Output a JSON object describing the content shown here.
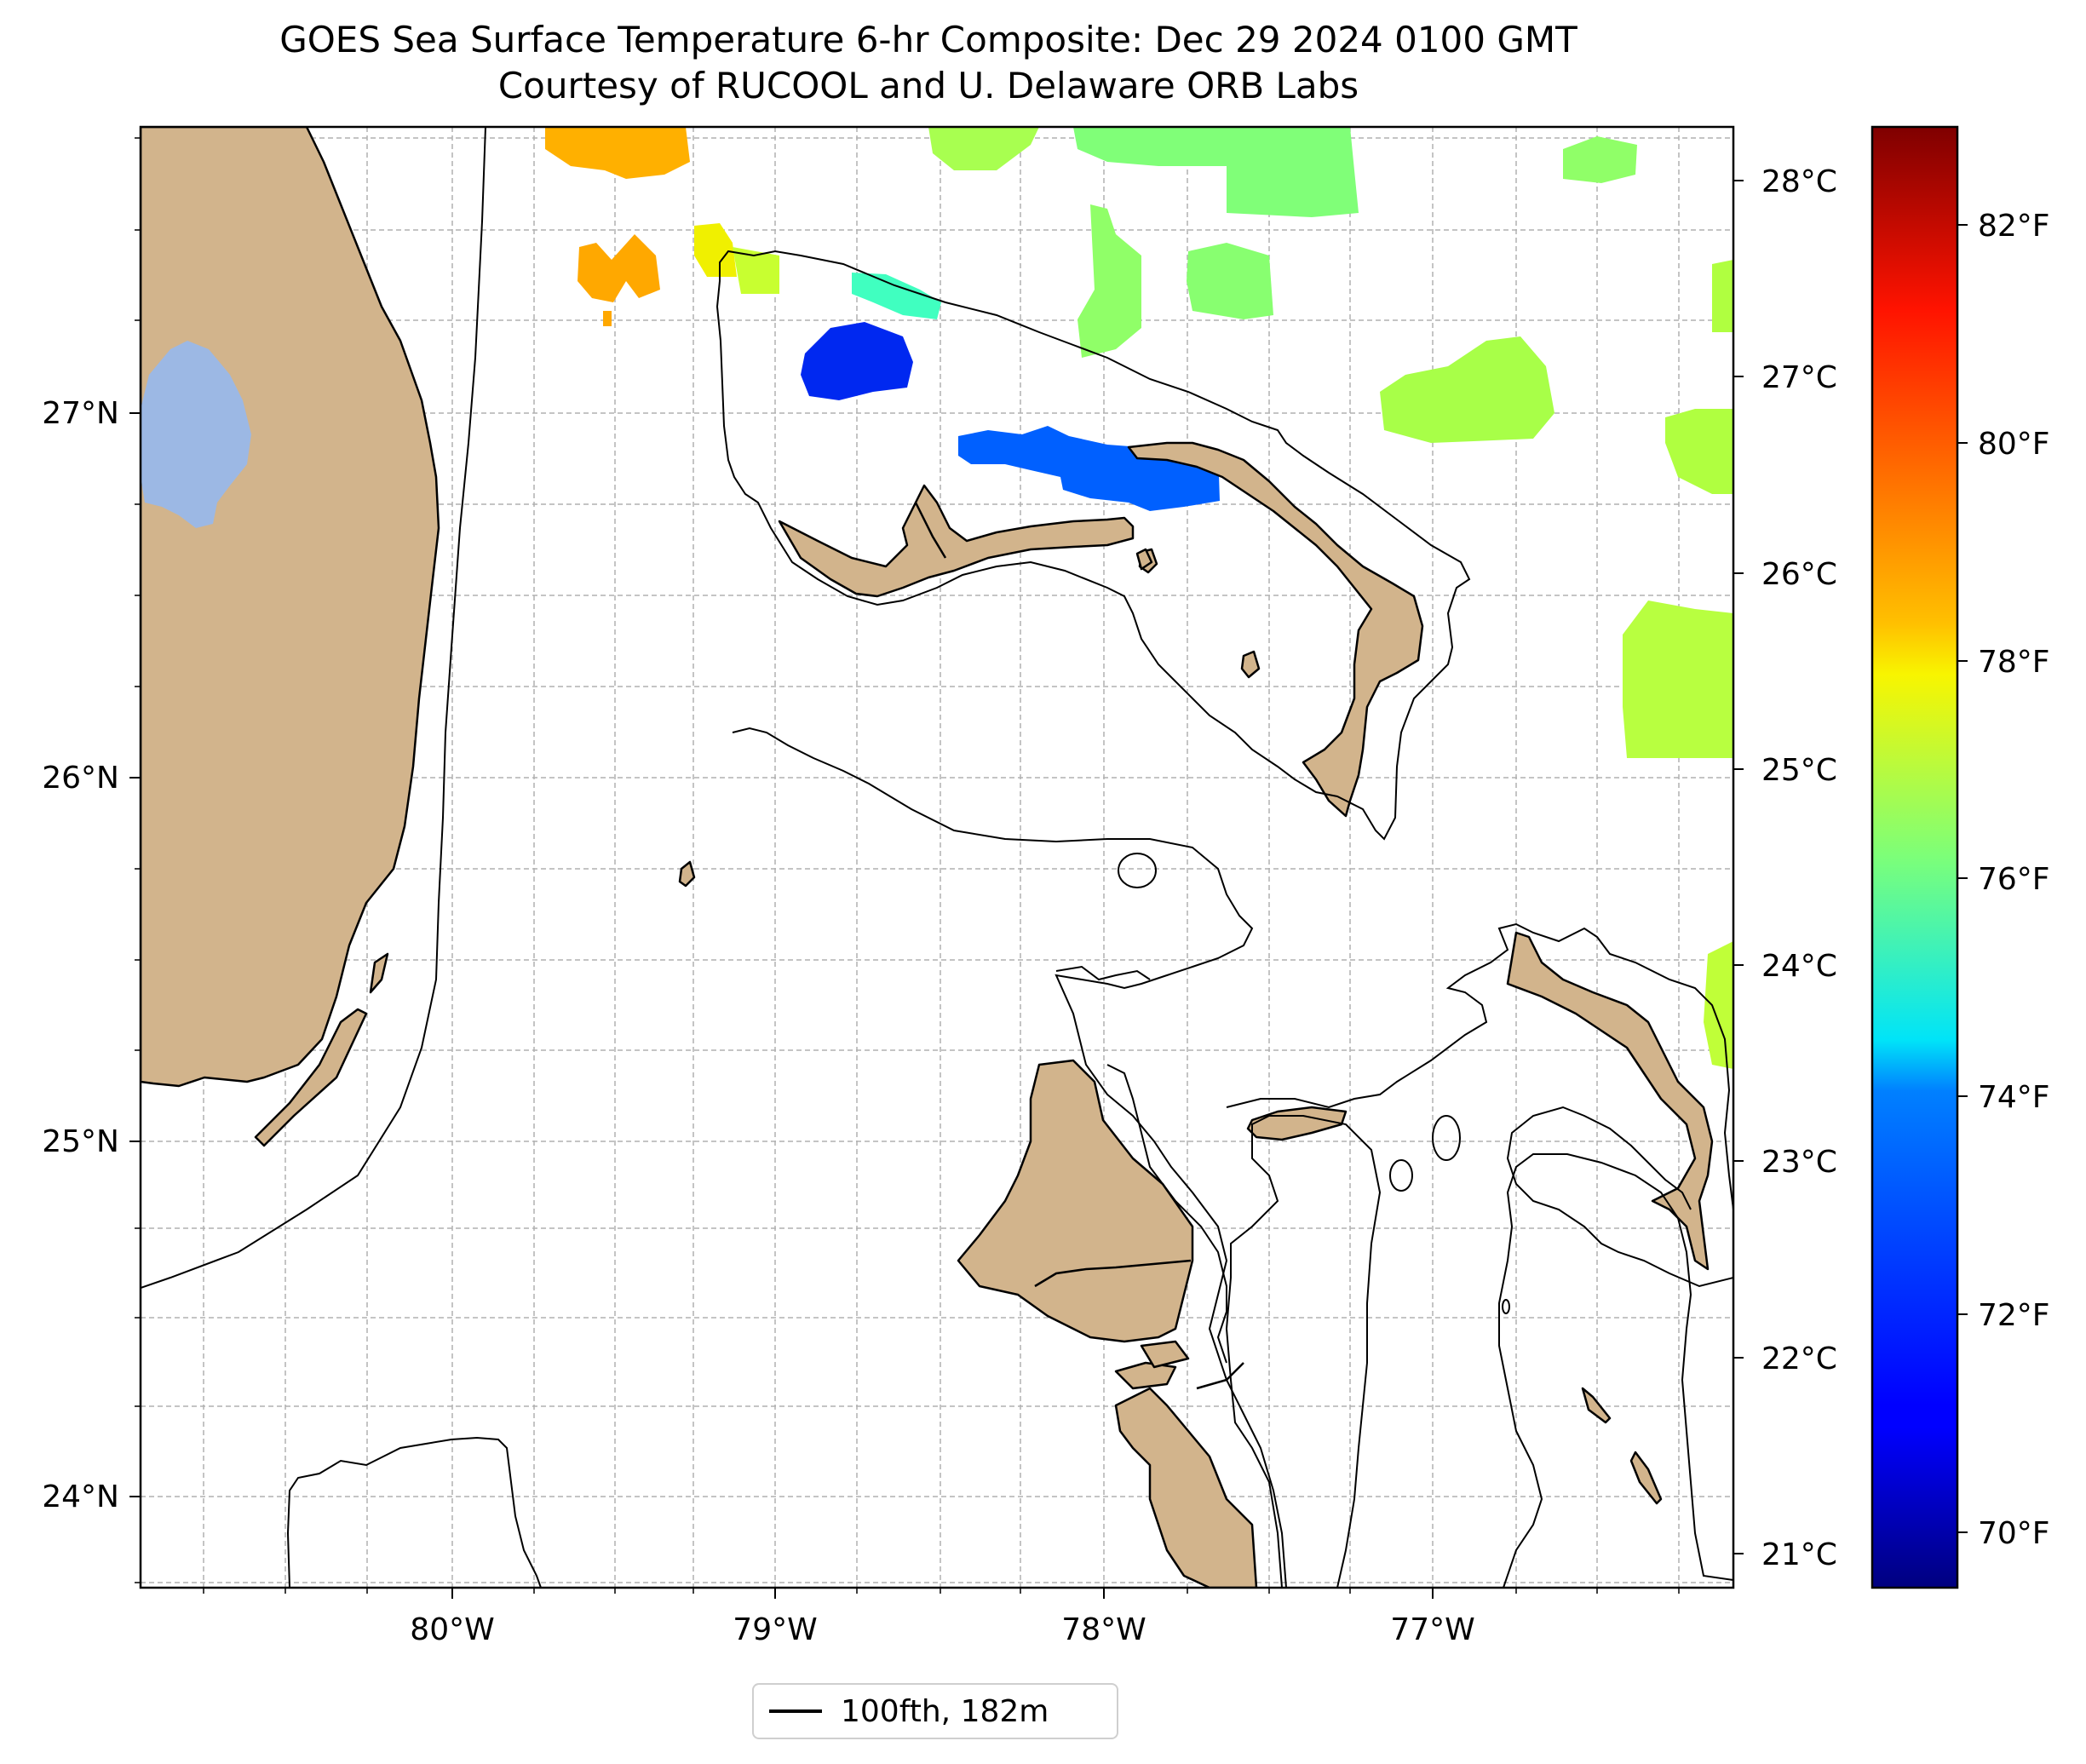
{
  "title": {
    "line1": "GOES Sea Surface Temperature 6-hr Composite: Dec 29 2024 0100 GMT",
    "line2": "Courtesy of RUCOOL and U. Delaware ORB Labs"
  },
  "map": {
    "lon_range": [
      -80.95,
      -76.08
    ],
    "lat_range": [
      23.75,
      27.78
    ],
    "lon_ticks": [
      "80°W",
      "79°W",
      "78°W",
      "77°W"
    ],
    "lat_ticks": [
      "27°N",
      "26°N",
      "25°N",
      "24°N"
    ],
    "grid": true,
    "colors": {
      "land": "#d2b48c",
      "lake": "#9cb8e4",
      "coast": "#000000",
      "grid": "#b0b0b0"
    }
  },
  "colorbar": {
    "colormap": "jet",
    "celsius_range": [
      20.8,
      28.3
    ],
    "celsius_ticks": [
      "28°C",
      "27°C",
      "26°C",
      "25°C",
      "24°C",
      "23°C",
      "22°C",
      "21°C"
    ],
    "fahrenheit_ticks": [
      "82°F",
      "80°F",
      "78°F",
      "76°F",
      "74°F",
      "72°F",
      "70°F"
    ]
  },
  "legend": {
    "label": "100fth, 182m"
  }
}
